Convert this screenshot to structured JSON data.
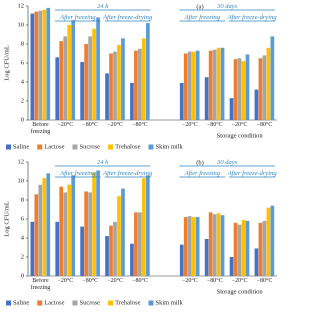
{
  "chart_data": [
    {
      "type": "bar",
      "panel_label": "(a)",
      "y_label": "Log CFU/mL",
      "x_label": "Storage condition",
      "categories": [
        "Before freezing",
        "−20°C",
        "−80°C",
        "−20°C",
        "−80°C",
        null,
        "−20°C",
        "−80°C",
        "−20°C",
        "−80°C"
      ],
      "annotations": [
        "24 h",
        "After freezing",
        "After freeze-drying",
        "30 days",
        "After freezing",
        "After freeze-drying"
      ],
      "series": [
        {
          "name": "Saline",
          "color": "#4472c4",
          "values": [
            11.2,
            6.6,
            6.1,
            4.9,
            3.9,
            null,
            3.9,
            4.5,
            2.3,
            3.2
          ]
        },
        {
          "name": "Lactose",
          "color": "#ed7d31",
          "values": [
            11.4,
            8.3,
            8.0,
            7.0,
            7.3,
            null,
            7.0,
            7.3,
            6.4,
            6.5
          ]
        },
        {
          "name": "Sucrose",
          "color": "#a5a5a5",
          "values": [
            11.5,
            8.8,
            8.8,
            7.2,
            7.5,
            null,
            7.2,
            7.4,
            6.5,
            6.8
          ]
        },
        {
          "name": "Trehalose",
          "color": "#ffc000",
          "values": [
            11.6,
            10.0,
            9.6,
            7.9,
            8.6,
            null,
            7.2,
            7.6,
            6.2,
            7.6
          ]
        },
        {
          "name": "Skim milk",
          "color": "#5b9bd5",
          "values": [
            11.8,
            10.5,
            10.8,
            8.6,
            10.2,
            null,
            7.3,
            7.6,
            6.9,
            8.8
          ]
        }
      ],
      "ylim": [
        0,
        12
      ],
      "yticks": [
        0,
        2,
        4,
        6,
        8,
        10,
        12
      ],
      "grid": false
    },
    {
      "type": "bar",
      "panel_label": "(b)",
      "y_label": "Log CFU/mL",
      "x_label": "Storage condition",
      "categories": [
        "Before freezing",
        "−20°C",
        "−80°C",
        "−20°C",
        "−80°C",
        null,
        "−20°C",
        "−80°C",
        "−20°C",
        "−80°C"
      ],
      "annotations": [
        "24 h",
        "After freezing",
        "After freeze-drying",
        "30 days",
        "After freezing",
        "After freeze-drying"
      ],
      "series": [
        {
          "name": "Saline",
          "color": "#4472c4",
          "values": [
            5.7,
            5.7,
            5.2,
            4.2,
            3.4,
            null,
            3.3,
            3.9,
            2.0,
            2.9
          ]
        },
        {
          "name": "Lactose",
          "color": "#ed7d31",
          "values": [
            8.6,
            9.4,
            8.9,
            5.3,
            6.7,
            null,
            6.2,
            6.7,
            5.6,
            5.6
          ]
        },
        {
          "name": "Sucrose",
          "color": "#a5a5a5",
          "values": [
            9.6,
            8.8,
            8.8,
            5.7,
            6.7,
            null,
            6.3,
            6.5,
            5.4,
            5.8
          ]
        },
        {
          "name": "Trehalose",
          "color": "#ffc000",
          "values": [
            10.3,
            9.6,
            10.9,
            8.4,
            10.3,
            null,
            6.2,
            6.6,
            5.9,
            7.2
          ]
        },
        {
          "name": "Skim milk",
          "color": "#5b9bd5",
          "values": [
            10.8,
            10.6,
            11.1,
            9.2,
            10.6,
            null,
            6.2,
            6.4,
            5.8,
            7.4
          ]
        }
      ],
      "ylim": [
        0,
        12
      ],
      "yticks": [
        0,
        2,
        4,
        6,
        8,
        10,
        12
      ],
      "grid": false
    }
  ]
}
